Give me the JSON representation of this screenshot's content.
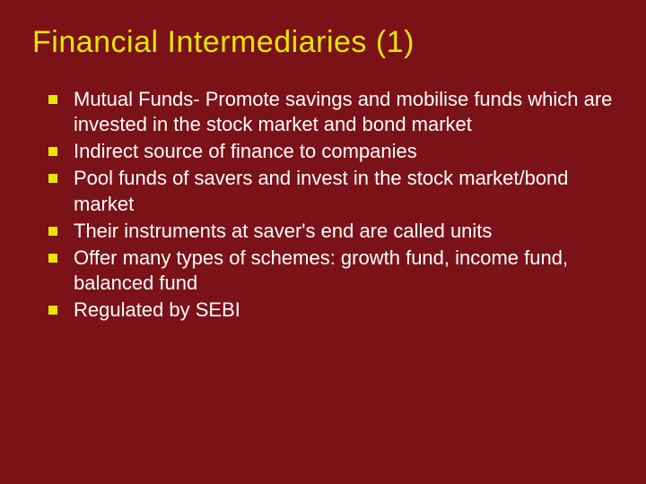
{
  "slide": {
    "background_color": "#7b1218",
    "title": {
      "text": "Financial Intermediaries (1)",
      "color": "#e6e600",
      "fontsize": 34
    },
    "bullet_color": "#e6e600",
    "text_color": "#ffffff",
    "text_fontsize": 22,
    "bullets": [
      "Mutual Funds- Promote savings and mobilise funds which are invested in the stock market and bond market",
      "Indirect source of finance to companies",
      "Pool funds of savers and invest in the stock market/bond market",
      "Their instruments at saver's end are called units",
      "Offer many types of schemes: growth fund, income fund, balanced fund",
      "Regulated by SEBI"
    ]
  }
}
